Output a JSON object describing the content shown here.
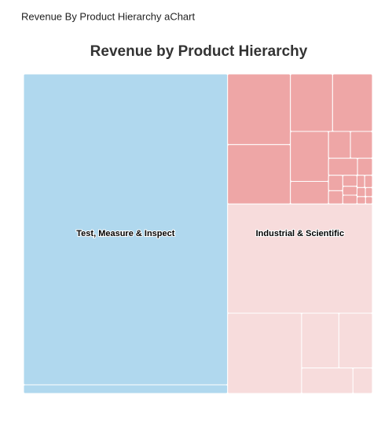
{
  "header": {
    "title": "Revenue By Product Hierarchy aChart"
  },
  "chart_data": {
    "type": "treemap",
    "title": "Revenue by Product Hierarchy",
    "groups": [
      {
        "name": "Test, Measure & Inspect",
        "color": "#b0d8ee",
        "values": [
          100725,
          2805
        ]
      },
      {
        "name": "Industrial & Scientific",
        "subgroups": [
          {
            "color": "#eea6a6",
            "values": [
              7050,
              5925,
              3848,
              3630,
              3025,
              1368,
              936,
              936,
              780,
              400,
              350,
              300,
              250,
              200,
              200,
              150,
              150,
              120,
              100,
              100,
              80
            ]
          },
          {
            "color": "#f7dcdc",
            "values": [
              25116,
              9432,
              3248,
              2914,
              2077,
              784
            ]
          }
        ]
      }
    ]
  }
}
